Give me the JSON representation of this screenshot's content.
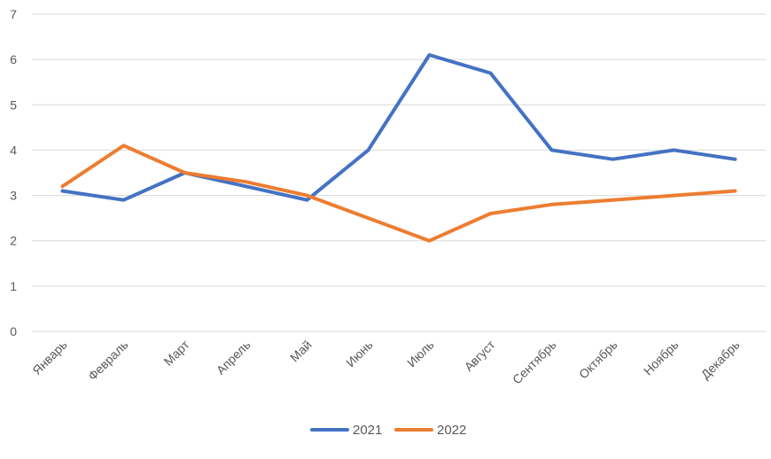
{
  "chart_data": {
    "type": "line",
    "categories": [
      "Январь",
      "Февраль",
      "Март",
      "Апрель",
      "Май",
      "Июнь",
      "Июль",
      "Август",
      "Сентябрь",
      "Октябрь",
      "Ноябрь",
      "Декабрь"
    ],
    "series": [
      {
        "name": "2021",
        "color": "#4472C4",
        "values": [
          3.1,
          2.9,
          3.5,
          3.2,
          2.9,
          4.0,
          6.1,
          5.7,
          4.0,
          3.8,
          4.0,
          3.8
        ]
      },
      {
        "name": "2022",
        "color": "#ED7D31",
        "values": [
          3.2,
          4.1,
          3.5,
          3.3,
          3.0,
          2.5,
          2.0,
          2.6,
          2.8,
          2.9,
          3.0,
          3.1
        ]
      }
    ],
    "yticks": [
      "0",
      "1",
      "2",
      "3",
      "4",
      "5",
      "6",
      "7"
    ],
    "ylim": [
      0,
      7
    ],
    "grid": true,
    "legend_position": "bottom",
    "title": "",
    "xlabel": "",
    "ylabel": ""
  }
}
